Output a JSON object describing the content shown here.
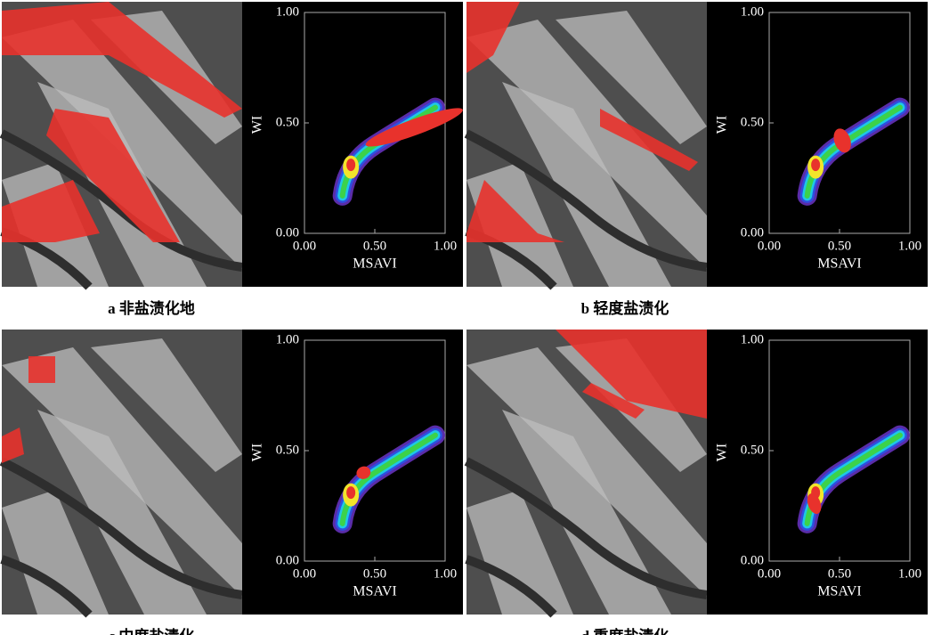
{
  "chart_data": [
    {
      "type": "scatter",
      "caption": "a 非盐渍化地",
      "xlabel": "MSAVI",
      "ylabel": "WI",
      "xlim": [
        0,
        1
      ],
      "ylim": [
        0,
        1
      ],
      "xticks": [
        {
          "value": 0,
          "label": "0.00"
        },
        {
          "value": 0.5,
          "label": "0.50"
        },
        {
          "value": 1,
          "label": "1.00"
        }
      ],
      "yticks": [
        {
          "value": 0,
          "label": "0.00"
        },
        {
          "value": 0.5,
          "label": "0.50"
        },
        {
          "value": 1,
          "label": "1.00"
        }
      ]
    },
    {
      "type": "scatter",
      "caption": "b 轻度盐渍化",
      "xlabel": "MSAVI",
      "ylabel": "WI",
      "xlim": [
        0,
        1
      ],
      "ylim": [
        0,
        1
      ],
      "xticks": [
        {
          "value": 0,
          "label": "0.00"
        },
        {
          "value": 0.5,
          "label": "0.50"
        },
        {
          "value": 1,
          "label": "1.00"
        }
      ],
      "yticks": [
        {
          "value": 0,
          "label": "0.00"
        },
        {
          "value": 0.5,
          "label": "0.50"
        },
        {
          "value": 1,
          "label": "1.00"
        }
      ]
    },
    {
      "type": "scatter",
      "caption": "c 中度盐渍化",
      "xlabel": "MSAVI",
      "ylabel": "WI",
      "xlim": [
        0,
        1
      ],
      "ylim": [
        0,
        1
      ],
      "xticks": [
        {
          "value": 0,
          "label": "0.00"
        },
        {
          "value": 0.5,
          "label": "0.50"
        },
        {
          "value": 1,
          "label": "1.00"
        }
      ],
      "yticks": [
        {
          "value": 0,
          "label": "0.00"
        },
        {
          "value": 0.5,
          "label": "0.50"
        },
        {
          "value": 1,
          "label": "1.00"
        }
      ]
    },
    {
      "type": "scatter",
      "caption": "d 重度盐渍化",
      "xlabel": "MSAVI",
      "ylabel": "WI",
      "xlim": [
        0,
        1
      ],
      "ylim": [
        0,
        1
      ],
      "xticks": [
        {
          "value": 0,
          "label": "0.00"
        },
        {
          "value": 0.5,
          "label": "0.50"
        },
        {
          "value": 1,
          "label": "1.00"
        }
      ],
      "yticks": [
        {
          "value": 0,
          "label": "0.00"
        },
        {
          "value": 0.5,
          "label": "0.50"
        },
        {
          "value": 1,
          "label": "1.00"
        }
      ]
    }
  ]
}
